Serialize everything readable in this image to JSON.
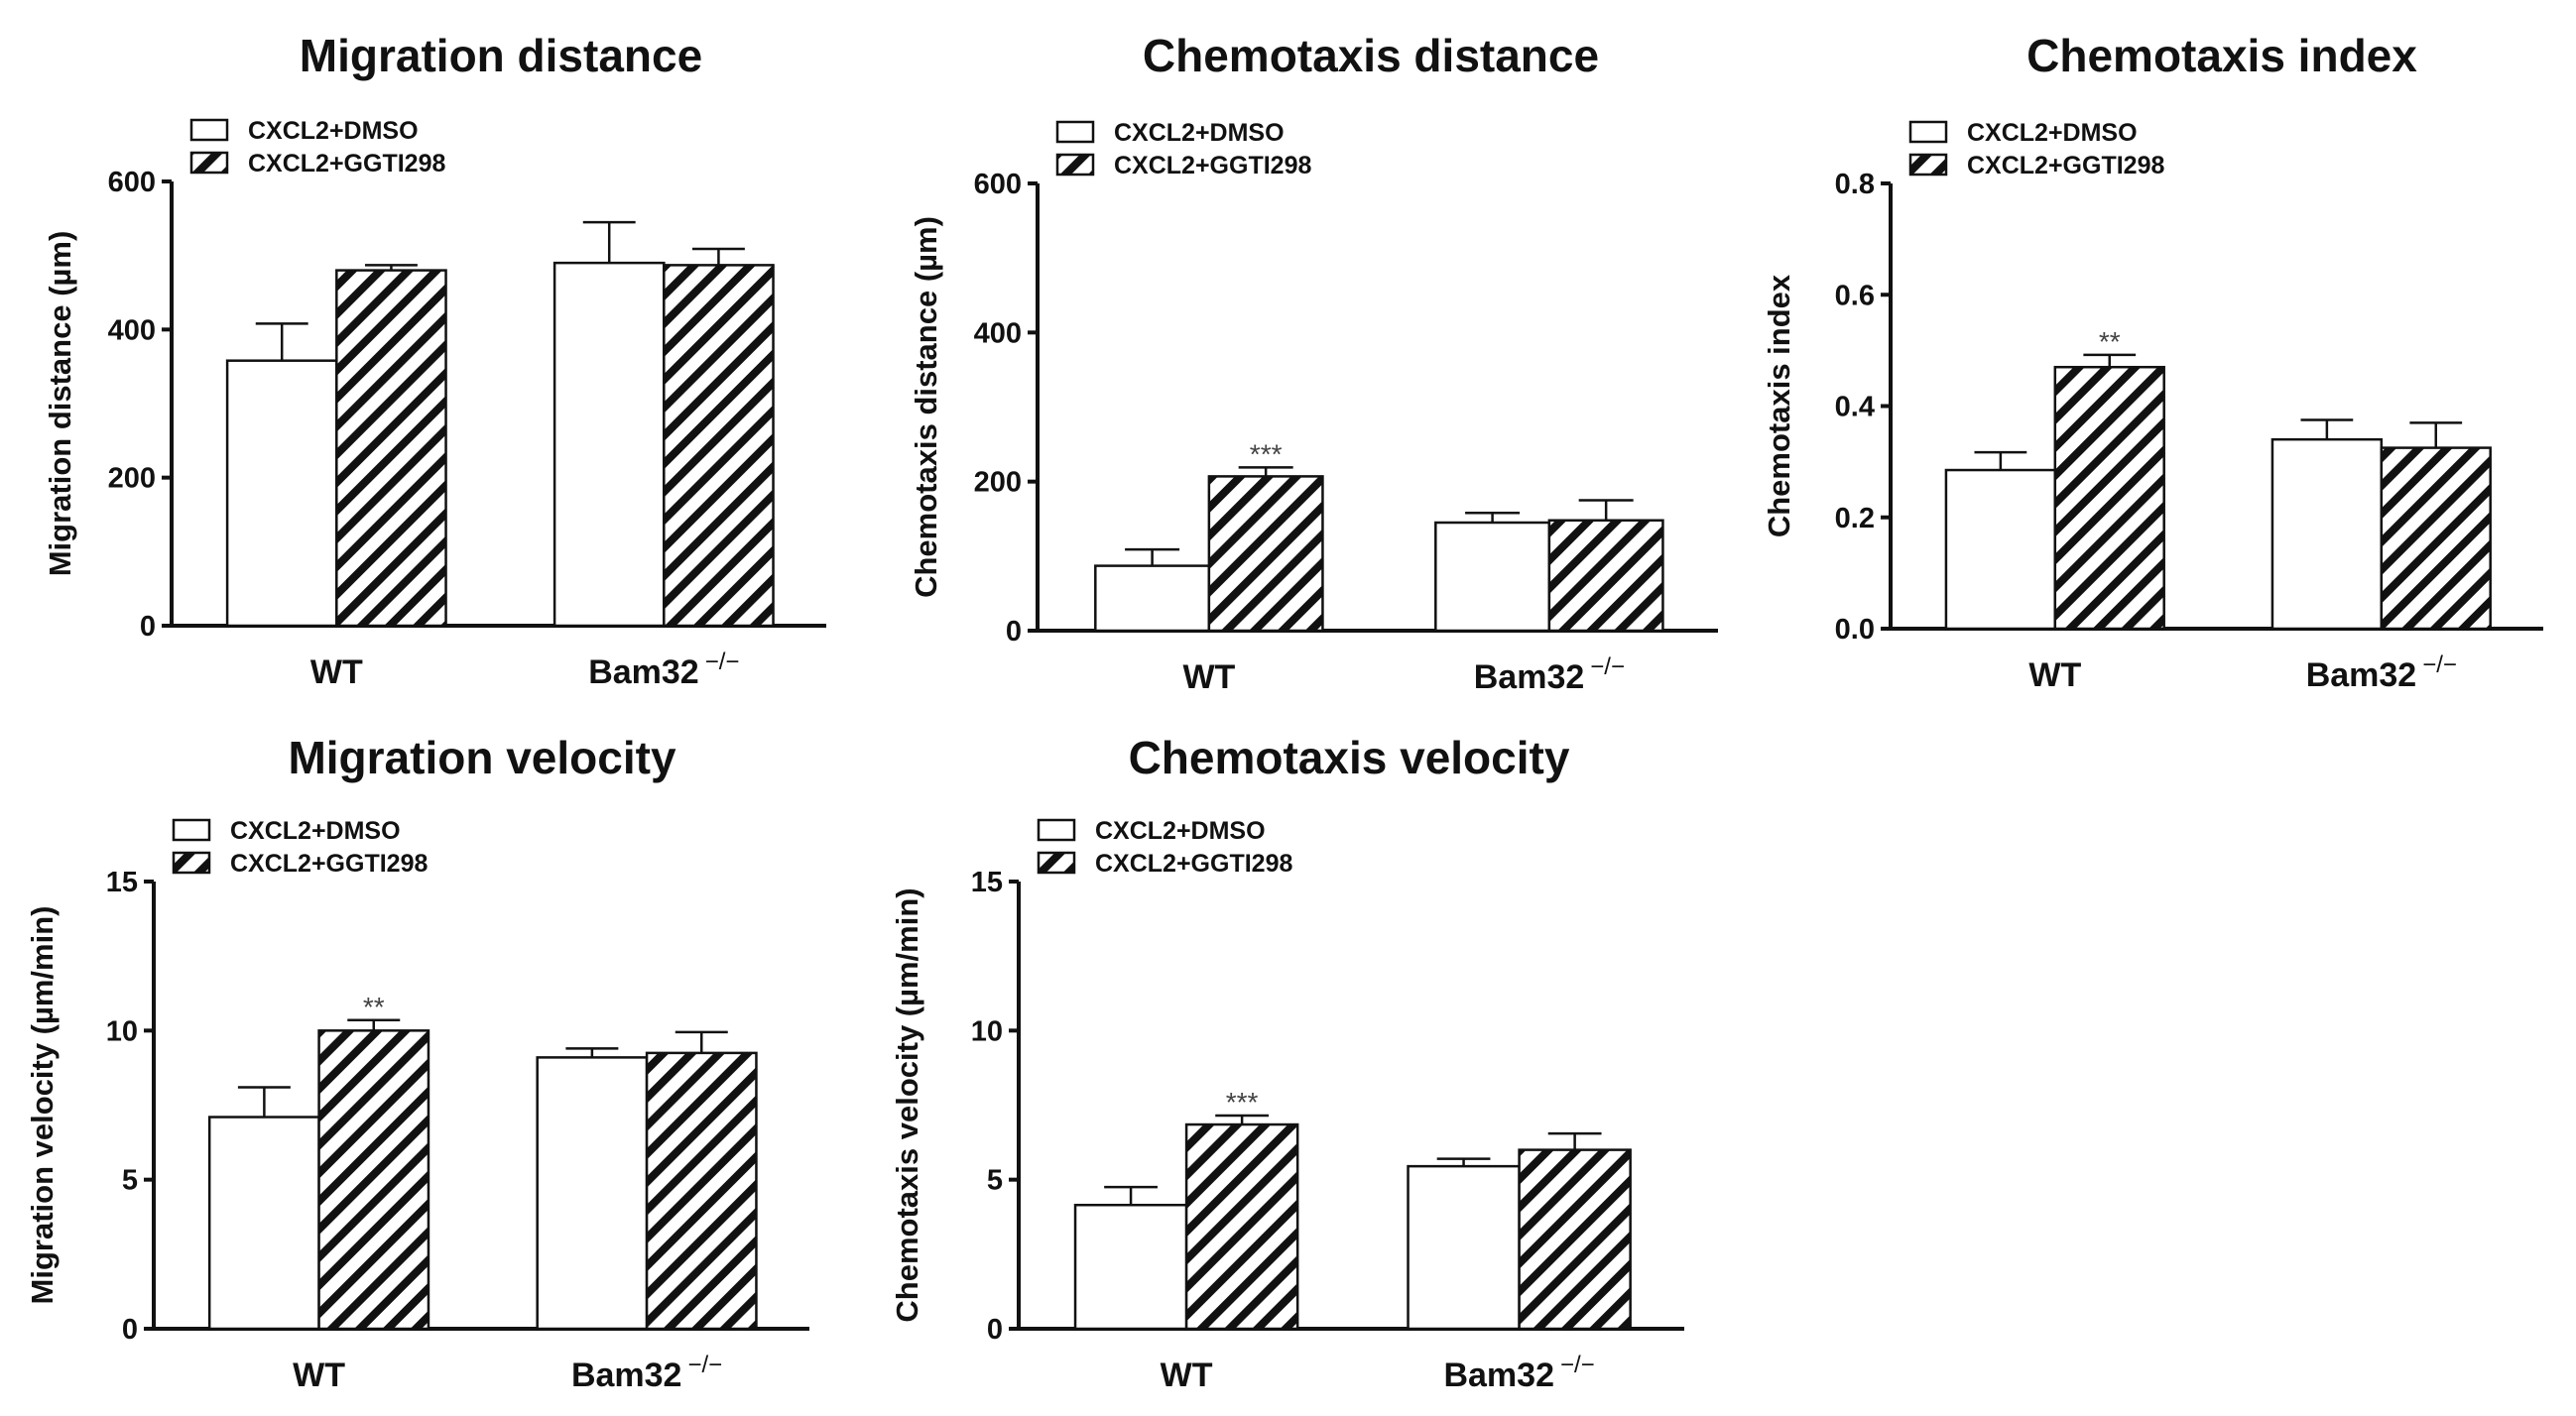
{
  "legend": [
    {
      "label": "CXCL2+DMSO",
      "pattern": "open"
    },
    {
      "label": "CXCL2+GGTI298",
      "pattern": "hatched"
    }
  ],
  "categories": [
    {
      "label": "WT",
      "sup": ""
    },
    {
      "label": "Bam32",
      "sup": "−/−"
    }
  ],
  "colors": {
    "bar_stroke": "#111111",
    "open_fill": "#ffffff",
    "hatch": "#111111"
  },
  "chart_data": [
    {
      "type": "bar",
      "title": "Migration distance",
      "ylabel": "Migration distance (µm)",
      "ylim": [
        0,
        600
      ],
      "yticks": [
        "0",
        "200",
        "400",
        "600"
      ],
      "ytick_values": [
        0,
        200,
        400,
        600
      ],
      "series": [
        {
          "name": "CXCL2+DMSO",
          "values": [
            358,
            490
          ],
          "errors": [
            50,
            55
          ]
        },
        {
          "name": "CXCL2+GGTI298",
          "values": [
            480,
            487
          ],
          "errors": [
            7,
            22
          ]
        }
      ],
      "annotations": [
        {
          "category": "WT",
          "series": "CXCL2+GGTI298",
          "text": ""
        }
      ]
    },
    {
      "type": "bar",
      "title": "Chemotaxis distance",
      "ylabel": "Chemotaxis distance (µm)",
      "ylim": [
        0,
        600
      ],
      "yticks": [
        "0",
        "200",
        "400",
        "600"
      ],
      "ytick_values": [
        0,
        200,
        400,
        600
      ],
      "series": [
        {
          "name": "CXCL2+DMSO",
          "values": [
            87,
            145
          ],
          "errors": [
            22,
            13
          ]
        },
        {
          "name": "CXCL2+GGTI298",
          "values": [
            207,
            148
          ],
          "errors": [
            12,
            27
          ]
        }
      ],
      "annotations": [
        {
          "category": "WT",
          "series": "CXCL2+GGTI298",
          "text": "***"
        }
      ]
    },
    {
      "type": "bar",
      "title": "Chemotaxis index",
      "ylabel": "Chemotaxis index",
      "ylim": [
        0,
        0.8
      ],
      "yticks": [
        "0.0",
        "0.2",
        "0.4",
        "0.6",
        "0.8"
      ],
      "ytick_values": [
        0,
        0.2,
        0.4,
        0.6,
        0.8
      ],
      "series": [
        {
          "name": "CXCL2+DMSO",
          "values": [
            0.285,
            0.34
          ],
          "errors": [
            0.032,
            0.035
          ]
        },
        {
          "name": "CXCL2+GGTI298",
          "values": [
            0.47,
            0.325
          ],
          "errors": [
            0.022,
            0.045
          ]
        }
      ],
      "annotations": [
        {
          "category": "WT",
          "series": "CXCL2+GGTI298",
          "text": "**"
        }
      ]
    },
    {
      "type": "bar",
      "title": "Migration velocity",
      "ylabel": "Migration velocity (µm/min)",
      "ylim": [
        0,
        15
      ],
      "yticks": [
        "0",
        "5",
        "10",
        "15"
      ],
      "ytick_values": [
        0,
        5,
        10,
        15
      ],
      "series": [
        {
          "name": "CXCL2+DMSO",
          "values": [
            7.1,
            9.1
          ],
          "errors": [
            1.0,
            0.3
          ]
        },
        {
          "name": "CXCL2+GGTI298",
          "values": [
            10.0,
            9.25
          ],
          "errors": [
            0.35,
            0.7
          ]
        }
      ],
      "annotations": [
        {
          "category": "WT",
          "series": "CXCL2+GGTI298",
          "text": "**"
        }
      ]
    },
    {
      "type": "bar",
      "title": "Chemotaxis velocity",
      "ylabel": "Chemotaxis velocity (µm/min)",
      "ylim": [
        0,
        15
      ],
      "yticks": [
        "0",
        "5",
        "10",
        "15"
      ],
      "ytick_values": [
        0,
        5,
        10,
        15
      ],
      "series": [
        {
          "name": "CXCL2+DMSO",
          "values": [
            4.15,
            5.45
          ],
          "errors": [
            0.6,
            0.25
          ]
        },
        {
          "name": "CXCL2+GGTI298",
          "values": [
            6.85,
            6.0
          ],
          "errors": [
            0.3,
            0.55
          ]
        }
      ],
      "annotations": [
        {
          "category": "WT",
          "series": "CXCL2+GGTI298",
          "text": "***"
        }
      ]
    }
  ]
}
